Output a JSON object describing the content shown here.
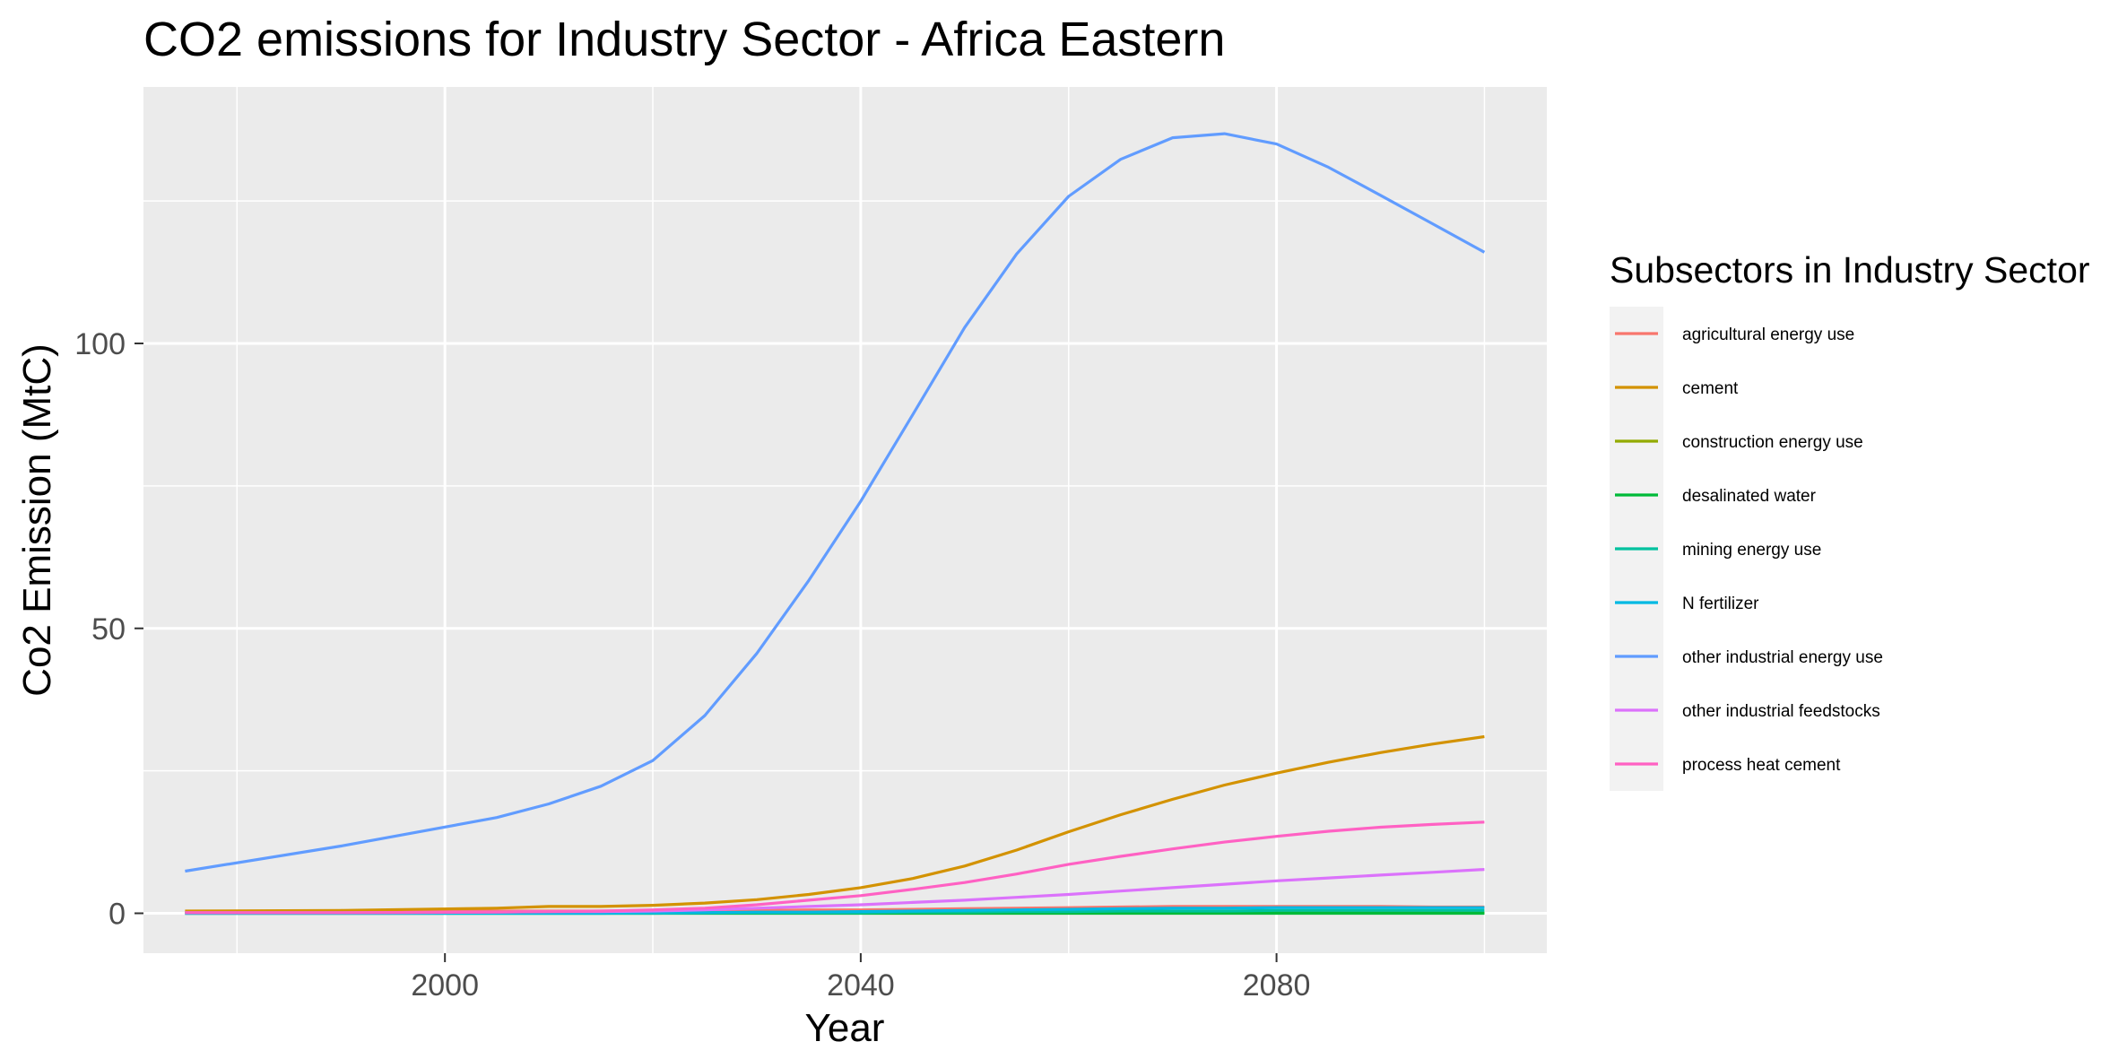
{
  "chart_data": {
    "type": "line",
    "title": "CO2 emissions for Industry Sector - Africa Eastern",
    "xlabel": "Year",
    "ylabel": "Co2 Emission (MtC)",
    "xlim": [
      1971,
      2106
    ],
    "ylim": [
      -7,
      145
    ],
    "x_ticks": [
      2000,
      2040,
      2080
    ],
    "x_tick_labels": [
      "2000",
      "2040",
      "2080"
    ],
    "y_ticks": [
      0,
      50,
      100
    ],
    "y_tick_labels": [
      "0",
      "50",
      "100"
    ],
    "grid": true,
    "legend": {
      "title": "Subsectors in Industry Sector",
      "position": "right"
    },
    "x": [
      1975,
      1990,
      2005,
      2010,
      2015,
      2020,
      2025,
      2030,
      2035,
      2040,
      2045,
      2050,
      2055,
      2060,
      2065,
      2070,
      2075,
      2080,
      2085,
      2090,
      2095,
      2100
    ],
    "series": [
      {
        "name": "agricultural energy use",
        "color": "#F8766D",
        "values": [
          0.3,
          0.3,
          0.4,
          0.4,
          0.4,
          0.4,
          0.5,
          0.5,
          0.6,
          0.6,
          0.7,
          0.8,
          0.9,
          1.0,
          1.1,
          1.2,
          1.2,
          1.2,
          1.2,
          1.2,
          1.1,
          1.1
        ]
      },
      {
        "name": "cement",
        "color": "#D39200",
        "values": [
          0.4,
          0.5,
          0.9,
          1.2,
          1.2,
          1.4,
          1.8,
          2.4,
          3.3,
          4.5,
          6.1,
          8.3,
          11.1,
          14.3,
          17.3,
          20.0,
          22.5,
          24.6,
          26.5,
          28.2,
          29.7,
          31.0
        ]
      },
      {
        "name": "construction energy use",
        "color": "#93AA00",
        "values": [
          0.1,
          0.1,
          0.1,
          0.1,
          0.1,
          0.1,
          0.1,
          0.1,
          0.1,
          0.1,
          0.1,
          0.1,
          0.1,
          0.1,
          0.1,
          0.1,
          0.1,
          0.1,
          0.1,
          0.1,
          0.1,
          0.1
        ]
      },
      {
        "name": "desalinated water",
        "color": "#00BA38",
        "values": [
          0.0,
          0.0,
          0.0,
          0.0,
          0.0,
          0.0,
          0.0,
          0.0,
          0.0,
          0.0,
          0.0,
          0.0,
          0.0,
          0.0,
          0.0,
          0.0,
          0.0,
          0.0,
          0.0,
          0.0,
          0.0,
          0.0
        ]
      },
      {
        "name": "mining energy use",
        "color": "#00C19F",
        "values": [
          0.0,
          0.0,
          0.0,
          0.0,
          0.0,
          0.0,
          0.1,
          0.1,
          0.1,
          0.1,
          0.2,
          0.2,
          0.3,
          0.3,
          0.4,
          0.4,
          0.4,
          0.5,
          0.5,
          0.5,
          0.5,
          0.5
        ]
      },
      {
        "name": "N fertilizer",
        "color": "#00B9E3",
        "values": [
          0.0,
          0.0,
          0.0,
          0.0,
          0.0,
          0.1,
          0.1,
          0.2,
          0.2,
          0.3,
          0.4,
          0.5,
          0.6,
          0.7,
          0.8,
          0.9,
          0.9,
          1.0,
          1.0,
          1.0,
          1.0,
          1.0
        ]
      },
      {
        "name": "other industrial energy use",
        "color": "#619CFF",
        "values": [
          7.4,
          11.8,
          16.8,
          19.2,
          22.3,
          26.8,
          34.7,
          45.6,
          58.4,
          72.3,
          87.5,
          102.8,
          115.7,
          125.8,
          132.3,
          136.1,
          136.8,
          135.0,
          130.9,
          126.0,
          121.0,
          116.0
        ]
      },
      {
        "name": "other industrial feedstocks",
        "color": "#DB72FB",
        "values": [
          0.1,
          0.1,
          0.2,
          0.3,
          0.3,
          0.4,
          0.6,
          0.9,
          1.2,
          1.5,
          1.9,
          2.3,
          2.8,
          3.3,
          3.9,
          4.5,
          5.1,
          5.7,
          6.2,
          6.7,
          7.2,
          7.7
        ]
      },
      {
        "name": "process heat cement",
        "color": "#FF61C3",
        "values": [
          0.1,
          0.1,
          0.2,
          0.3,
          0.4,
          0.6,
          0.9,
          1.5,
          2.3,
          3.1,
          4.2,
          5.4,
          6.9,
          8.6,
          10.0,
          11.3,
          12.5,
          13.5,
          14.4,
          15.1,
          15.6,
          16.0
        ]
      }
    ]
  }
}
